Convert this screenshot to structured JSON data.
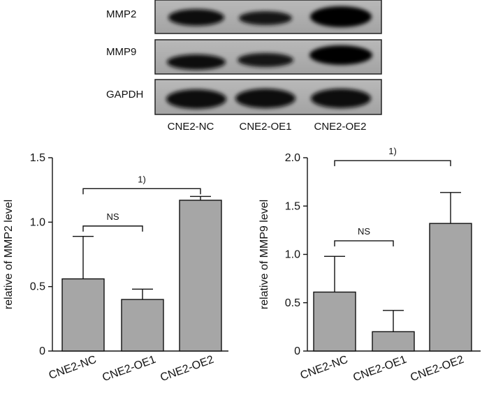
{
  "blot": {
    "proteins": [
      "MMP2",
      "MMP9",
      "GAPDH"
    ],
    "lanes": [
      "CNE2-NC",
      "CNE2-OE1",
      "CNE2-OE2"
    ]
  },
  "chart_data": [
    {
      "type": "bar",
      "categories": [
        "CNE2-NC",
        "CNE2-OE1",
        "CNE2-OE2"
      ],
      "values": [
        0.56,
        0.4,
        1.17
      ],
      "errors": [
        0.33,
        0.08,
        0.03
      ],
      "ylabel": "relative of MMP2 level",
      "ylim": [
        0,
        1.5
      ],
      "yticks": [
        "0",
        "0.5",
        "1.0",
        "1.5"
      ],
      "significance": [
        {
          "from": 0,
          "to": 1,
          "label": "NS"
        },
        {
          "from": 0,
          "to": 2,
          "label": "1)"
        }
      ]
    },
    {
      "type": "bar",
      "categories": [
        "CNE2-NC",
        "CNE2-OE1",
        "CNE2-OE2"
      ],
      "values": [
        0.61,
        0.2,
        1.32
      ],
      "errors": [
        0.37,
        0.22,
        0.32
      ],
      "ylabel": "relative of MMP9 level",
      "ylim": [
        0,
        2.0
      ],
      "yticks": [
        "0",
        "0.5",
        "1.0",
        "1.5",
        "2.0"
      ],
      "significance": [
        {
          "from": 0,
          "to": 1,
          "label": "NS"
        },
        {
          "from": 0,
          "to": 2,
          "label": "1)"
        }
      ]
    }
  ]
}
